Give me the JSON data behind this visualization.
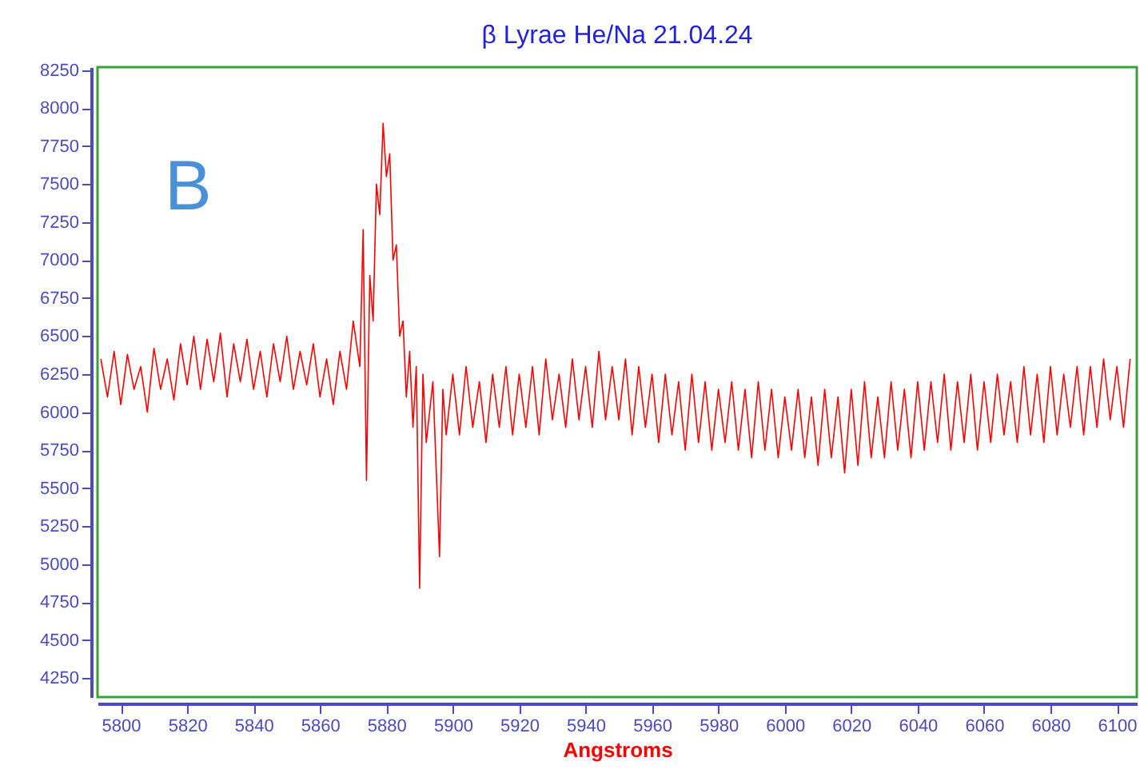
{
  "chart_data": {
    "type": "line",
    "title": "β Lyrae He/Na 21.04.24",
    "xlabel": "Angstroms",
    "annotations": [
      "B"
    ],
    "xlim": [
      5793,
      6106
    ],
    "xticks": [
      5800,
      5820,
      5840,
      5860,
      5880,
      5900,
      5920,
      5940,
      5960,
      5980,
      6000,
      6020,
      6040,
      6060,
      6080,
      6100
    ],
    "ylim": [
      4125,
      8270
    ],
    "yticks": [
      4250,
      4500,
      4750,
      5000,
      5250,
      5500,
      5750,
      6000,
      6250,
      6500,
      6750,
      7000,
      7250,
      7500,
      7750,
      8000,
      8250
    ],
    "grid": false,
    "marker": "none",
    "line_style": "solid",
    "series": [
      {
        "color": "#ff0000",
        "x": [
          5794,
          5796,
          5798,
          5800,
          5802,
          5804,
          5806,
          5808,
          5810,
          5812,
          5814,
          5816,
          5818,
          5820,
          5822,
          5824,
          5826,
          5828,
          5830,
          5832,
          5834,
          5836,
          5838,
          5840,
          5842,
          5844,
          5846,
          5848,
          5850,
          5852,
          5854,
          5856,
          5858,
          5860,
          5862,
          5864,
          5866,
          5868,
          5870,
          5872,
          5873,
          5874,
          5875,
          5876,
          5877,
          5878,
          5879,
          5880,
          5881,
          5882,
          5883,
          5884,
          5885,
          5886,
          5887,
          5888,
          5889,
          5890,
          5891,
          5892,
          5894,
          5896,
          5897,
          5898,
          5900,
          5902,
          5904,
          5906,
          5908,
          5910,
          5912,
          5914,
          5916,
          5918,
          5920,
          5922,
          5924,
          5926,
          5928,
          5930,
          5932,
          5934,
          5936,
          5938,
          5940,
          5942,
          5944,
          5946,
          5948,
          5950,
          5952,
          5954,
          5956,
          5958,
          5960,
          5962,
          5964,
          5966,
          5968,
          5970,
          5972,
          5974,
          5976,
          5978,
          5980,
          5982,
          5984,
          5986,
          5988,
          5990,
          5992,
          5994,
          5996,
          5998,
          6000,
          6002,
          6004,
          6006,
          6008,
          6010,
          6012,
          6014,
          6016,
          6018,
          6020,
          6022,
          6024,
          6026,
          6028,
          6030,
          6032,
          6034,
          6036,
          6038,
          6040,
          6042,
          6044,
          6046,
          6048,
          6050,
          6052,
          6054,
          6056,
          6058,
          6060,
          6062,
          6064,
          6066,
          6068,
          6070,
          6072,
          6074,
          6076,
          6078,
          6080,
          6082,
          6084,
          6086,
          6088,
          6090,
          6092,
          6094,
          6096,
          6098,
          6100,
          6102,
          6104
        ],
        "values": [
          6350,
          6100,
          6400,
          6050,
          6380,
          6150,
          6300,
          6000,
          6420,
          6150,
          6350,
          6080,
          6450,
          6180,
          6500,
          6150,
          6480,
          6200,
          6520,
          6100,
          6450,
          6200,
          6480,
          6150,
          6400,
          6100,
          6450,
          6200,
          6500,
          6150,
          6400,
          6180,
          6450,
          6100,
          6350,
          6050,
          6400,
          6150,
          6600,
          6300,
          7200,
          5550,
          6900,
          6600,
          7500,
          7300,
          7900,
          7550,
          7700,
          7000,
          7100,
          6500,
          6600,
          6100,
          6400,
          5900,
          6300,
          4840,
          6250,
          5800,
          6200,
          5050,
          6150,
          5850,
          6250,
          5850,
          6300,
          5900,
          6200,
          5800,
          6250,
          5900,
          6300,
          5850,
          6250,
          5900,
          6300,
          5850,
          6350,
          5950,
          6250,
          5900,
          6350,
          5950,
          6300,
          5900,
          6400,
          5950,
          6300,
          5950,
          6350,
          5850,
          6300,
          5900,
          6250,
          5800,
          6250,
          5850,
          6200,
          5750,
          6250,
          5800,
          6200,
          5750,
          6150,
          5800,
          6200,
          5750,
          6150,
          5700,
          6200,
          5750,
          6150,
          5700,
          6100,
          5750,
          6150,
          5700,
          6100,
          5650,
          6150,
          5700,
          6100,
          5600,
          6150,
          5650,
          6200,
          5700,
          6100,
          5700,
          6200,
          5750,
          6150,
          5700,
          6200,
          5750,
          6200,
          5800,
          6250,
          5750,
          6200,
          5800,
          6250,
          5750,
          6200,
          5800,
          6250,
          5850,
          6200,
          5800,
          6300,
          5850,
          6250,
          5800,
          6300,
          5850,
          6250,
          5900,
          6300,
          5850,
          6300,
          5900,
          6350,
          5950,
          6300,
          5900,
          6350
        ]
      }
    ]
  }
}
